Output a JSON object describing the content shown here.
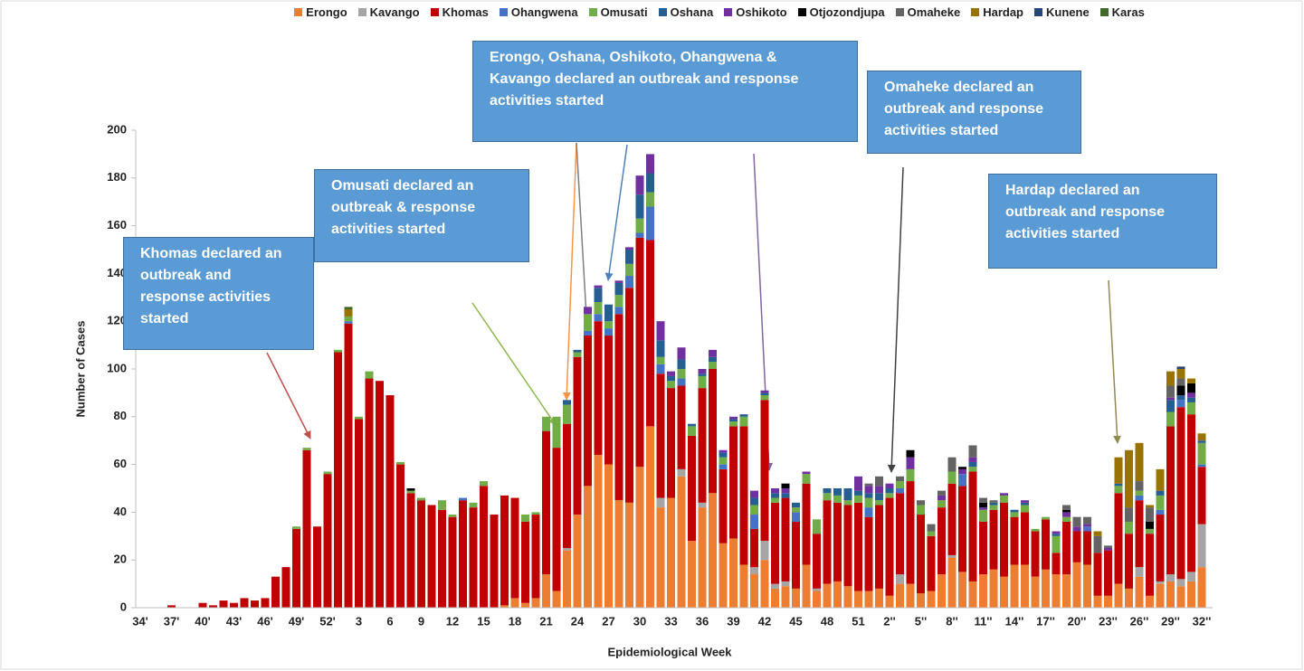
{
  "chart_data": {
    "type": "stacked_bar",
    "y_axis_label": "Number of Cases",
    "x_axis_label": "Epidemiological Week",
    "legend": "top",
    "grid": false,
    "ylim": [
      0,
      200
    ],
    "yticks": [
      0,
      20,
      40,
      60,
      80,
      100,
      120,
      140,
      160,
      180,
      200
    ],
    "categories": [
      "34'",
      null,
      null,
      "37'",
      null,
      null,
      "40'",
      null,
      null,
      "43'",
      null,
      null,
      "46'",
      null,
      null,
      "49'",
      null,
      null,
      "52'",
      null,
      null,
      "3",
      null,
      null,
      "6",
      null,
      null,
      "9",
      null,
      null,
      "12",
      null,
      null,
      "15",
      null,
      null,
      "18",
      null,
      null,
      "21",
      null,
      null,
      "24",
      null,
      null,
      "27",
      null,
      null,
      "30",
      null,
      null,
      "33",
      null,
      null,
      "36",
      null,
      null,
      "39",
      null,
      null,
      "42",
      null,
      null,
      "45",
      null,
      null,
      "48",
      null,
      null,
      "51",
      null,
      null,
      "2''",
      null,
      null,
      "5''",
      null,
      null,
      "8''",
      null,
      null,
      "11''",
      null,
      null,
      "14''",
      null,
      null,
      "17''",
      null,
      null,
      "20''",
      null,
      null,
      "23''",
      null,
      null,
      "26''",
      null,
      null,
      "29''",
      null,
      null,
      "32''"
    ],
    "series": [
      {
        "name": "Erongo",
        "color": "#ed7d31",
        "values": [
          0,
          0,
          0,
          0,
          0,
          0,
          0,
          0,
          0,
          0,
          0,
          0,
          0,
          0,
          0,
          0,
          0,
          0,
          0,
          0,
          0,
          0,
          0,
          0,
          0,
          0,
          0,
          0,
          0,
          0,
          0,
          0,
          0,
          0,
          0,
          1,
          4,
          2,
          4,
          14,
          7,
          24,
          39,
          51,
          64,
          60,
          45,
          44,
          59,
          76,
          42,
          46,
          55,
          28,
          42,
          48,
          27,
          29,
          18,
          14,
          20,
          8,
          9,
          8,
          18,
          7,
          10,
          11,
          9,
          7,
          7,
          8,
          5,
          10,
          10,
          6,
          7,
          14,
          21,
          15,
          11,
          14,
          16,
          13,
          18,
          18,
          13,
          16,
          14,
          14,
          19,
          18,
          5,
          5,
          10,
          8,
          13,
          5,
          10,
          11,
          9,
          11,
          17
        ]
      },
      {
        "name": "Kavango",
        "color": "#a5a5a5",
        "values": [
          0,
          0,
          0,
          0,
          0,
          0,
          0,
          0,
          0,
          0,
          0,
          0,
          0,
          0,
          0,
          0,
          0,
          0,
          0,
          0,
          0,
          0,
          0,
          0,
          0,
          0,
          0,
          0,
          0,
          0,
          0,
          0,
          0,
          0,
          0,
          0,
          0,
          0,
          0,
          0,
          0,
          1,
          0,
          0,
          0,
          0,
          0,
          0,
          0,
          0,
          4,
          0,
          3,
          0,
          2,
          0,
          0,
          0,
          0,
          3,
          8,
          2,
          2,
          0,
          0,
          1,
          0,
          0,
          0,
          0,
          0,
          0,
          0,
          4,
          0,
          0,
          0,
          0,
          1,
          0,
          0,
          0,
          0,
          0,
          0,
          0,
          0,
          0,
          0,
          0,
          0,
          0,
          0,
          0,
          0,
          0,
          4,
          0,
          1,
          3,
          3,
          4,
          18
        ]
      },
      {
        "name": "Khomas",
        "color": "#c00000",
        "values": [
          0,
          0,
          0,
          1,
          0,
          0,
          2,
          1,
          3,
          2,
          4,
          3,
          4,
          13,
          17,
          33,
          66,
          34,
          56,
          107,
          119,
          79,
          96,
          95,
          89,
          60,
          48,
          45,
          43,
          41,
          38,
          45,
          42,
          51,
          39,
          46,
          42,
          34,
          35,
          60,
          60,
          52,
          66,
          63,
          56,
          54,
          78,
          90,
          96,
          78,
          52,
          46,
          35,
          44,
          48,
          52,
          31,
          47,
          58,
          16,
          59,
          34,
          35,
          28,
          34,
          23,
          35,
          33,
          34,
          37,
          31,
          35,
          41,
          34,
          43,
          33,
          23,
          28,
          30,
          36,
          46,
          22,
          25,
          31,
          20,
          22,
          19,
          21,
          9,
          22,
          13,
          14,
          18,
          19,
          38,
          23,
          28,
          26,
          28,
          62,
          72,
          66,
          24
        ]
      },
      {
        "name": "Ohangwena",
        "color": "#4472c4",
        "values": [
          0,
          0,
          0,
          0,
          0,
          0,
          0,
          0,
          0,
          0,
          0,
          0,
          0,
          0,
          0,
          0,
          0,
          0,
          0,
          0,
          1,
          0,
          0,
          0,
          0,
          0,
          0,
          0,
          0,
          0,
          0,
          1,
          0,
          0,
          0,
          0,
          0,
          0,
          0,
          0,
          0,
          0,
          0,
          2,
          3,
          3,
          3,
          5,
          2,
          14,
          4,
          0,
          3,
          0,
          0,
          0,
          2,
          0,
          0,
          6,
          0,
          0,
          0,
          4,
          0,
          0,
          0,
          0,
          0,
          0,
          4,
          0,
          0,
          2,
          0,
          0,
          0,
          0,
          0,
          5,
          0,
          0,
          0,
          0,
          0,
          0,
          0,
          0,
          0,
          0,
          0,
          2,
          0,
          0,
          0,
          0,
          2,
          0,
          2,
          0,
          3,
          0,
          1
        ]
      },
      {
        "name": "Omusati",
        "color": "#70ad47",
        "values": [
          0,
          0,
          0,
          0,
          0,
          0,
          0,
          0,
          0,
          0,
          0,
          0,
          0,
          0,
          0,
          1,
          1,
          0,
          1,
          1,
          2,
          1,
          3,
          0,
          0,
          1,
          1,
          1,
          0,
          4,
          1,
          0,
          2,
          2,
          0,
          0,
          0,
          3,
          1,
          6,
          13,
          8,
          2,
          7,
          5,
          3,
          5,
          5,
          6,
          6,
          3,
          3,
          4,
          4,
          5,
          3,
          3,
          2,
          4,
          4,
          2,
          2,
          0,
          2,
          4,
          6,
          3,
          3,
          2,
          3,
          4,
          2,
          2,
          3,
          5,
          4,
          2,
          3,
          5,
          0,
          2,
          5,
          2,
          3,
          2,
          3,
          1,
          1,
          7,
          2,
          0,
          0,
          0,
          0,
          3,
          5,
          2,
          2,
          6,
          6,
          0,
          5,
          9
        ]
      },
      {
        "name": "Oshana",
        "color": "#255e91",
        "values": [
          0,
          0,
          0,
          0,
          0,
          0,
          0,
          0,
          0,
          0,
          0,
          0,
          0,
          0,
          0,
          0,
          0,
          0,
          0,
          0,
          0,
          0,
          0,
          0,
          0,
          0,
          0,
          0,
          0,
          0,
          0,
          0,
          0,
          0,
          0,
          0,
          0,
          0,
          0,
          0,
          0,
          2,
          1,
          0,
          6,
          7,
          5,
          6,
          10,
          8,
          7,
          2,
          4,
          1,
          1,
          2,
          2,
          1,
          1,
          3,
          1,
          2,
          2,
          2,
          0,
          0,
          2,
          3,
          5,
          2,
          2,
          3,
          2,
          0,
          0,
          0,
          0,
          0,
          0,
          0,
          2,
          0,
          1,
          0,
          1,
          1,
          0,
          0,
          1,
          0,
          0,
          0,
          0,
          0,
          1,
          0,
          0,
          0,
          2,
          5,
          2,
          2,
          1
        ]
      },
      {
        "name": "Oshikoto",
        "color": "#7030a0",
        "values": [
          0,
          0,
          0,
          0,
          0,
          0,
          0,
          0,
          0,
          0,
          0,
          0,
          0,
          0,
          0,
          0,
          0,
          0,
          0,
          0,
          0,
          0,
          0,
          0,
          0,
          0,
          0,
          0,
          0,
          0,
          0,
          0,
          0,
          0,
          0,
          0,
          0,
          0,
          0,
          0,
          0,
          0,
          0,
          3,
          1,
          0,
          1,
          1,
          8,
          8,
          8,
          2,
          5,
          0,
          2,
          3,
          1,
          1,
          0,
          3,
          1,
          2,
          2,
          0,
          1,
          0,
          0,
          0,
          0,
          6,
          3,
          3,
          2,
          0,
          5,
          0,
          0,
          2,
          0,
          2,
          2,
          1,
          0,
          1,
          0,
          1,
          0,
          0,
          1,
          2,
          2,
          1,
          0,
          1,
          0,
          0,
          0,
          0,
          0,
          1,
          0,
          2,
          0
        ]
      },
      {
        "name": "Otjozondjupa",
        "color": "#000000",
        "values": [
          0,
          0,
          0,
          0,
          0,
          0,
          0,
          0,
          0,
          0,
          0,
          0,
          0,
          0,
          0,
          0,
          0,
          0,
          0,
          0,
          0,
          0,
          0,
          0,
          0,
          0,
          1,
          0,
          0,
          0,
          0,
          0,
          0,
          0,
          0,
          0,
          0,
          0,
          0,
          0,
          0,
          0,
          0,
          0,
          0,
          0,
          0,
          0,
          0,
          0,
          0,
          0,
          0,
          0,
          0,
          0,
          0,
          0,
          0,
          0,
          0,
          0,
          2,
          0,
          0,
          0,
          0,
          0,
          0,
          0,
          0,
          0,
          0,
          0,
          3,
          0,
          0,
          0,
          0,
          1,
          0,
          2,
          0,
          0,
          0,
          0,
          0,
          0,
          0,
          1,
          0,
          0,
          0,
          0,
          0,
          0,
          0,
          3,
          0,
          0,
          4,
          4,
          0
        ]
      },
      {
        "name": "Omaheke",
        "color": "#636363",
        "values": [
          0,
          0,
          0,
          0,
          0,
          0,
          0,
          0,
          0,
          0,
          0,
          0,
          0,
          0,
          0,
          0,
          0,
          0,
          0,
          0,
          0,
          0,
          0,
          0,
          0,
          0,
          0,
          0,
          0,
          0,
          0,
          0,
          0,
          0,
          0,
          0,
          0,
          0,
          0,
          0,
          0,
          0,
          0,
          0,
          0,
          0,
          0,
          0,
          0,
          0,
          0,
          0,
          0,
          0,
          0,
          0,
          0,
          0,
          0,
          0,
          0,
          0,
          0,
          0,
          0,
          0,
          0,
          0,
          0,
          0,
          1,
          4,
          0,
          2,
          0,
          2,
          3,
          2,
          6,
          0,
          5,
          2,
          1,
          0,
          0,
          0,
          0,
          0,
          0,
          2,
          4,
          3,
          7,
          1,
          0,
          6,
          4,
          6,
          0,
          5,
          3,
          0,
          0
        ]
      },
      {
        "name": "Hardap",
        "color": "#997300",
        "values": [
          0,
          0,
          0,
          0,
          0,
          0,
          0,
          0,
          0,
          0,
          0,
          0,
          0,
          0,
          0,
          0,
          0,
          0,
          0,
          0,
          3,
          0,
          0,
          0,
          0,
          0,
          0,
          0,
          0,
          0,
          0,
          0,
          0,
          0,
          0,
          0,
          0,
          0,
          0,
          0,
          0,
          0,
          0,
          0,
          0,
          0,
          0,
          0,
          0,
          0,
          0,
          0,
          0,
          0,
          0,
          0,
          0,
          0,
          0,
          0,
          0,
          0,
          0,
          0,
          0,
          0,
          0,
          0,
          0,
          0,
          0,
          0,
          0,
          0,
          0,
          0,
          0,
          0,
          0,
          0,
          0,
          0,
          0,
          0,
          0,
          0,
          0,
          0,
          0,
          0,
          0,
          0,
          2,
          0,
          11,
          24,
          16,
          1,
          9,
          6,
          4,
          2,
          3
        ]
      },
      {
        "name": "Kunene",
        "color": "#264478",
        "values": [
          0,
          0,
          0,
          0,
          0,
          0,
          0,
          0,
          0,
          0,
          0,
          0,
          0,
          0,
          0,
          0,
          0,
          0,
          0,
          0,
          0,
          0,
          0,
          0,
          0,
          0,
          0,
          0,
          0,
          0,
          0,
          0,
          0,
          0,
          0,
          0,
          0,
          0,
          0,
          0,
          0,
          0,
          0,
          0,
          0,
          0,
          0,
          0,
          0,
          0,
          0,
          0,
          0,
          0,
          0,
          0,
          0,
          0,
          0,
          0,
          0,
          0,
          0,
          0,
          0,
          0,
          0,
          0,
          0,
          0,
          0,
          0,
          0,
          0,
          0,
          0,
          0,
          0,
          0,
          0,
          0,
          0,
          0,
          0,
          0,
          0,
          0,
          0,
          0,
          0,
          0,
          0,
          0,
          0,
          0,
          0,
          0,
          0,
          0,
          0,
          1,
          0,
          0
        ]
      },
      {
        "name": "Karas",
        "color": "#43682b",
        "values": [
          0,
          0,
          0,
          0,
          0,
          0,
          0,
          0,
          0,
          0,
          0,
          0,
          0,
          0,
          0,
          0,
          0,
          0,
          0,
          0,
          1,
          0,
          0,
          0,
          0,
          0,
          0,
          0,
          0,
          0,
          0,
          0,
          0,
          0,
          0,
          0,
          0,
          0,
          0,
          0,
          0,
          0,
          0,
          0,
          0,
          0,
          0,
          0,
          0,
          0,
          0,
          0,
          0,
          0,
          0,
          0,
          0,
          0,
          0,
          0,
          0,
          0,
          0,
          0,
          0,
          0,
          0,
          0,
          0,
          0,
          0,
          0,
          0,
          0,
          0,
          0,
          0,
          0,
          0,
          0,
          0,
          0,
          0,
          0,
          0,
          0,
          0,
          0,
          0,
          0,
          0,
          0,
          0,
          0,
          0,
          0,
          0,
          0,
          0,
          0,
          0,
          0,
          0
        ]
      }
    ],
    "annotations": [
      "Khomas declared an outbreak and response activities started",
      "Omusati declared an outbreak & response activities started",
      "Erongo, Oshana, Oshikoto, Ohangwena & Kavango declared an outbreak and response activities started",
      "Omaheke declared an outbreak and response activities started",
      "Hardap declared an outbreak and response activities started"
    ]
  }
}
